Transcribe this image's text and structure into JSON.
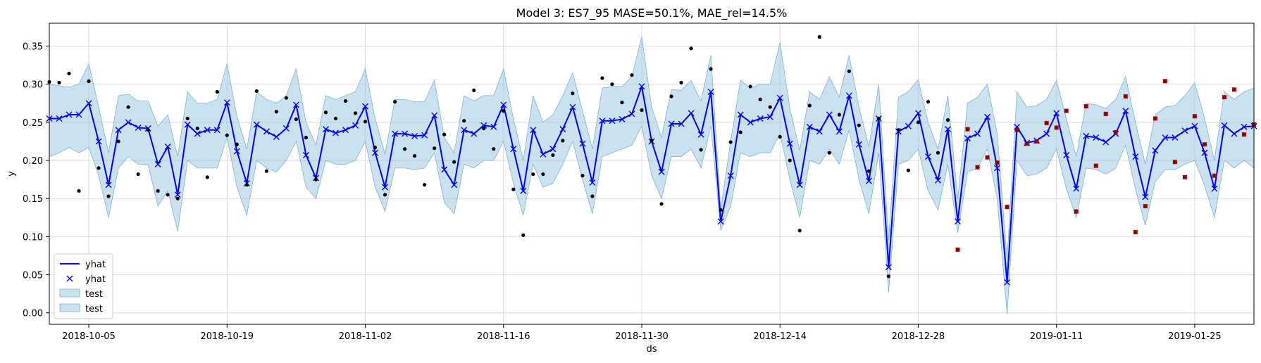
{
  "chart_data": {
    "type": "line",
    "title": "Model 3: ES7_95 MASE=50.1%, MAE_rel=14.5%",
    "xlabel": "ds",
    "ylabel": "y",
    "x_start": "2018-10-01",
    "x_range": [
      "2018-10-01",
      "2019-01-31"
    ],
    "ylim": [
      -0.015,
      0.38
    ],
    "grid": true,
    "legend_position": "lower-left",
    "x_ticks": [
      "2018-10-05",
      "2018-10-19",
      "2018-11-02",
      "2018-11-16",
      "2018-11-30",
      "2018-12-14",
      "2018-12-28",
      "2019-01-11",
      "2019-01-25"
    ],
    "y_ticks": [
      "0.00",
      "0.05",
      "0.10",
      "0.15",
      "0.20",
      "0.25",
      "0.30",
      "0.35"
    ],
    "legend": [
      {
        "label": "yhat",
        "kind": "line"
      },
      {
        "label": "yhat",
        "kind": "marker"
      },
      {
        "label": "test",
        "kind": "band"
      },
      {
        "label": "test",
        "kind": "band"
      }
    ],
    "colors": {
      "line": "#0000ff",
      "band": "#9ec9e2",
      "band_edge": "#7fb2d6",
      "train_points": "#000000",
      "test_points": "#c00000",
      "grid": "#d9d9d9"
    },
    "yhat": [
      0.255,
      0.255,
      0.26,
      0.26,
      0.275,
      0.225,
      0.168,
      0.24,
      0.25,
      0.243,
      0.242,
      0.195,
      0.218,
      0.155,
      0.247,
      0.235,
      0.24,
      0.24,
      0.276,
      0.212,
      0.17,
      0.247,
      0.238,
      0.231,
      0.242,
      0.273,
      0.207,
      0.177,
      0.241,
      0.236,
      0.24,
      0.246,
      0.271,
      0.21,
      0.165,
      0.235,
      0.235,
      0.232,
      0.233,
      0.259,
      0.188,
      0.168,
      0.24,
      0.235,
      0.246,
      0.244,
      0.273,
      0.215,
      0.16,
      0.24,
      0.208,
      0.215,
      0.241,
      0.27,
      0.222,
      0.171,
      0.252,
      0.252,
      0.254,
      0.261,
      0.297,
      0.225,
      0.185,
      0.248,
      0.248,
      0.262,
      0.234,
      0.29,
      0.12,
      0.18,
      0.26,
      0.25,
      0.255,
      0.257,
      0.282,
      0.222,
      0.168,
      0.244,
      0.238,
      0.26,
      0.238,
      0.285,
      0.221,
      0.173,
      0.255,
      0.06,
      0.238,
      0.245,
      0.262,
      0.205,
      0.174,
      0.241,
      0.12,
      0.229,
      0.235,
      0.257,
      0.19,
      0.04,
      0.244,
      0.223,
      0.226,
      0.235,
      0.262,
      0.207,
      0.163,
      0.232,
      0.23,
      0.224,
      0.235,
      0.265,
      0.205,
      0.152,
      0.213,
      0.23,
      0.23,
      0.239,
      0.245,
      0.21,
      0.163,
      0.246,
      0.235,
      0.244,
      0.245
    ],
    "lower": [
      0.205,
      0.21,
      0.217,
      0.21,
      0.217,
      0.18,
      0.125,
      0.19,
      0.205,
      0.195,
      0.195,
      0.14,
      0.16,
      0.107,
      0.2,
      0.19,
      0.19,
      0.19,
      0.23,
      0.165,
      0.128,
      0.2,
      0.19,
      0.185,
      0.2,
      0.225,
      0.165,
      0.15,
      0.2,
      0.195,
      0.195,
      0.2,
      0.225,
      0.165,
      0.133,
      0.19,
      0.19,
      0.188,
      0.19,
      0.21,
      0.145,
      0.13,
      0.195,
      0.19,
      0.2,
      0.2,
      0.225,
      0.17,
      0.128,
      0.195,
      0.165,
      0.17,
      0.195,
      0.225,
      0.175,
      0.13,
      0.205,
      0.21,
      0.215,
      0.22,
      0.245,
      0.18,
      0.15,
      0.205,
      0.205,
      0.215,
      0.19,
      0.245,
      0.108,
      0.14,
      0.21,
      0.205,
      0.21,
      0.21,
      0.235,
      0.175,
      0.125,
      0.2,
      0.195,
      0.215,
      0.195,
      0.24,
      0.175,
      0.13,
      0.21,
      0.027,
      0.195,
      0.2,
      0.215,
      0.16,
      0.135,
      0.195,
      0.105,
      0.185,
      0.19,
      0.215,
      0.15,
      -0.002,
      0.2,
      0.18,
      0.182,
      0.19,
      0.215,
      0.163,
      0.125,
      0.19,
      0.188,
      0.182,
      0.19,
      0.22,
      0.162,
      0.115,
      0.172,
      0.188,
      0.188,
      0.195,
      0.2,
      0.167,
      0.125,
      0.2,
      0.19,
      0.2,
      0.19
    ],
    "upper": [
      0.3,
      0.298,
      0.296,
      0.3,
      0.327,
      0.27,
      0.21,
      0.285,
      0.287,
      0.278,
      0.278,
      0.245,
      0.26,
      0.205,
      0.29,
      0.275,
      0.275,
      0.28,
      0.327,
      0.258,
      0.215,
      0.29,
      0.28,
      0.275,
      0.285,
      0.32,
      0.25,
      0.22,
      0.285,
      0.28,
      0.285,
      0.29,
      0.32,
      0.255,
      0.208,
      0.28,
      0.28,
      0.277,
      0.277,
      0.305,
      0.23,
      0.21,
      0.285,
      0.278,
      0.285,
      0.285,
      0.32,
      0.255,
      0.2,
      0.285,
      0.25,
      0.26,
      0.285,
      0.315,
      0.265,
      0.215,
      0.295,
      0.297,
      0.297,
      0.31,
      0.362,
      0.27,
      0.23,
      0.293,
      0.292,
      0.305,
      0.278,
      0.338,
      0.135,
      0.225,
      0.305,
      0.295,
      0.3,
      0.3,
      0.355,
      0.268,
      0.213,
      0.29,
      0.28,
      0.31,
      0.283,
      0.338,
      0.27,
      0.218,
      0.3,
      0.095,
      0.283,
      0.29,
      0.306,
      0.25,
      0.215,
      0.285,
      0.15,
      0.275,
      0.283,
      0.3,
      0.235,
      0.07,
      0.29,
      0.27,
      0.272,
      0.28,
      0.305,
      0.255,
      0.205,
      0.275,
      0.273,
      0.268,
      0.28,
      0.31,
      0.25,
      0.195,
      0.26,
      0.27,
      0.272,
      0.285,
      0.302,
      0.255,
      0.2,
      0.29,
      0.28,
      0.29,
      0.295
    ],
    "train_points": [
      [
        0,
        0.303
      ],
      [
        1,
        0.302
      ],
      [
        2,
        0.314
      ],
      [
        3,
        0.16
      ],
      [
        4,
        0.304
      ],
      [
        5,
        0.19
      ],
      [
        6,
        0.153
      ],
      [
        7,
        0.225
      ],
      [
        8,
        0.27
      ],
      [
        9,
        0.182
      ],
      [
        10,
        0.24
      ],
      [
        11,
        0.16
      ],
      [
        12,
        0.155
      ],
      [
        13,
        0.15
      ],
      [
        14,
        0.255
      ],
      [
        15,
        0.242
      ],
      [
        16,
        0.178
      ],
      [
        17,
        0.29
      ],
      [
        18,
        0.233
      ],
      [
        19,
        0.221
      ],
      [
        20,
        0.168
      ],
      [
        21,
        0.291
      ],
      [
        22,
        0.186
      ],
      [
        23,
        0.264
      ],
      [
        24,
        0.282
      ],
      [
        25,
        0.254
      ],
      [
        26,
        0.23
      ],
      [
        27,
        0.175
      ],
      [
        28,
        0.263
      ],
      [
        29,
        0.255
      ],
      [
        30,
        0.278
      ],
      [
        31,
        0.262
      ],
      [
        32,
        0.251
      ],
      [
        33,
        0.217
      ],
      [
        34,
        0.155
      ],
      [
        35,
        0.277
      ],
      [
        36,
        0.215
      ],
      [
        37,
        0.206
      ],
      [
        38,
        0.168
      ],
      [
        39,
        0.216
      ],
      [
        40,
        0.234
      ],
      [
        41,
        0.198
      ],
      [
        42,
        0.252
      ],
      [
        43,
        0.292
      ],
      [
        44,
        0.242
      ],
      [
        45,
        0.215
      ],
      [
        46,
        0.265
      ],
      [
        47,
        0.162
      ],
      [
        48,
        0.102
      ],
      [
        49,
        0.182
      ],
      [
        50,
        0.182
      ],
      [
        51,
        0.207
      ],
      [
        52,
        0.226
      ],
      [
        53,
        0.288
      ],
      [
        54,
        0.18
      ],
      [
        55,
        0.153
      ],
      [
        56,
        0.308
      ],
      [
        57,
        0.3
      ],
      [
        58,
        0.276
      ],
      [
        59,
        0.312
      ],
      [
        60,
        0.266
      ],
      [
        61,
        0.226
      ],
      [
        62,
        0.143
      ],
      [
        63,
        0.284
      ],
      [
        64,
        0.302
      ],
      [
        65,
        0.347
      ],
      [
        66,
        0.214
      ],
      [
        67,
        0.32
      ],
      [
        68,
        0.135
      ],
      [
        69,
        0.224
      ],
      [
        70,
        0.237
      ],
      [
        71,
        0.297
      ],
      [
        72,
        0.28
      ],
      [
        73,
        0.27
      ],
      [
        74,
        0.231
      ],
      [
        75,
        0.2
      ],
      [
        76,
        0.108
      ],
      [
        77,
        0.272
      ],
      [
        78,
        0.362
      ],
      [
        79,
        0.21
      ],
      [
        80,
        0.26
      ],
      [
        81,
        0.317
      ],
      [
        82,
        0.246
      ],
      [
        83,
        0.186
      ],
      [
        84,
        0.255
      ],
      [
        85,
        0.048
      ],
      [
        86,
        0.24
      ],
      [
        87,
        0.187
      ],
      [
        88,
        0.25
      ],
      [
        89,
        0.277
      ],
      [
        90,
        0.21
      ],
      [
        91,
        0.253
      ]
    ],
    "test_points": [
      [
        92,
        0.083
      ],
      [
        93,
        0.241
      ],
      [
        94,
        0.191
      ],
      [
        95,
        0.204
      ],
      [
        96,
        0.197
      ],
      [
        97,
        0.139
      ],
      [
        98,
        0.24
      ],
      [
        99,
        0.222
      ],
      [
        100,
        0.225
      ],
      [
        101,
        0.249
      ],
      [
        102,
        0.243
      ],
      [
        103,
        0.265
      ],
      [
        104,
        0.133
      ],
      [
        105,
        0.271
      ],
      [
        106,
        0.193
      ],
      [
        107,
        0.261
      ],
      [
        108,
        0.237
      ],
      [
        109,
        0.284
      ],
      [
        110,
        0.106
      ],
      [
        111,
        0.14
      ],
      [
        112,
        0.255
      ],
      [
        113,
        0.304
      ],
      [
        114,
        0.198
      ],
      [
        115,
        0.178
      ],
      [
        116,
        0.258
      ],
      [
        117,
        0.221
      ],
      [
        118,
        0.18
      ],
      [
        119,
        0.283
      ],
      [
        120,
        0.293
      ],
      [
        121,
        0.234
      ],
      [
        122,
        0.247
      ]
    ]
  }
}
